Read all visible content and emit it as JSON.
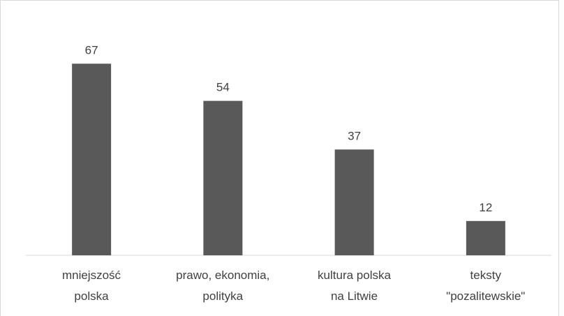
{
  "chart_data": {
    "type": "bar",
    "categories": [
      "mniejszość\npolska",
      "prawo, ekonomia,\npolityka",
      "kultura polska\nna Litwie",
      "teksty\n\"pozalitewskie\""
    ],
    "values": [
      67,
      54,
      37,
      12
    ],
    "color": "#595959",
    "ylim": [
      0,
      80
    ],
    "grid": false
  }
}
